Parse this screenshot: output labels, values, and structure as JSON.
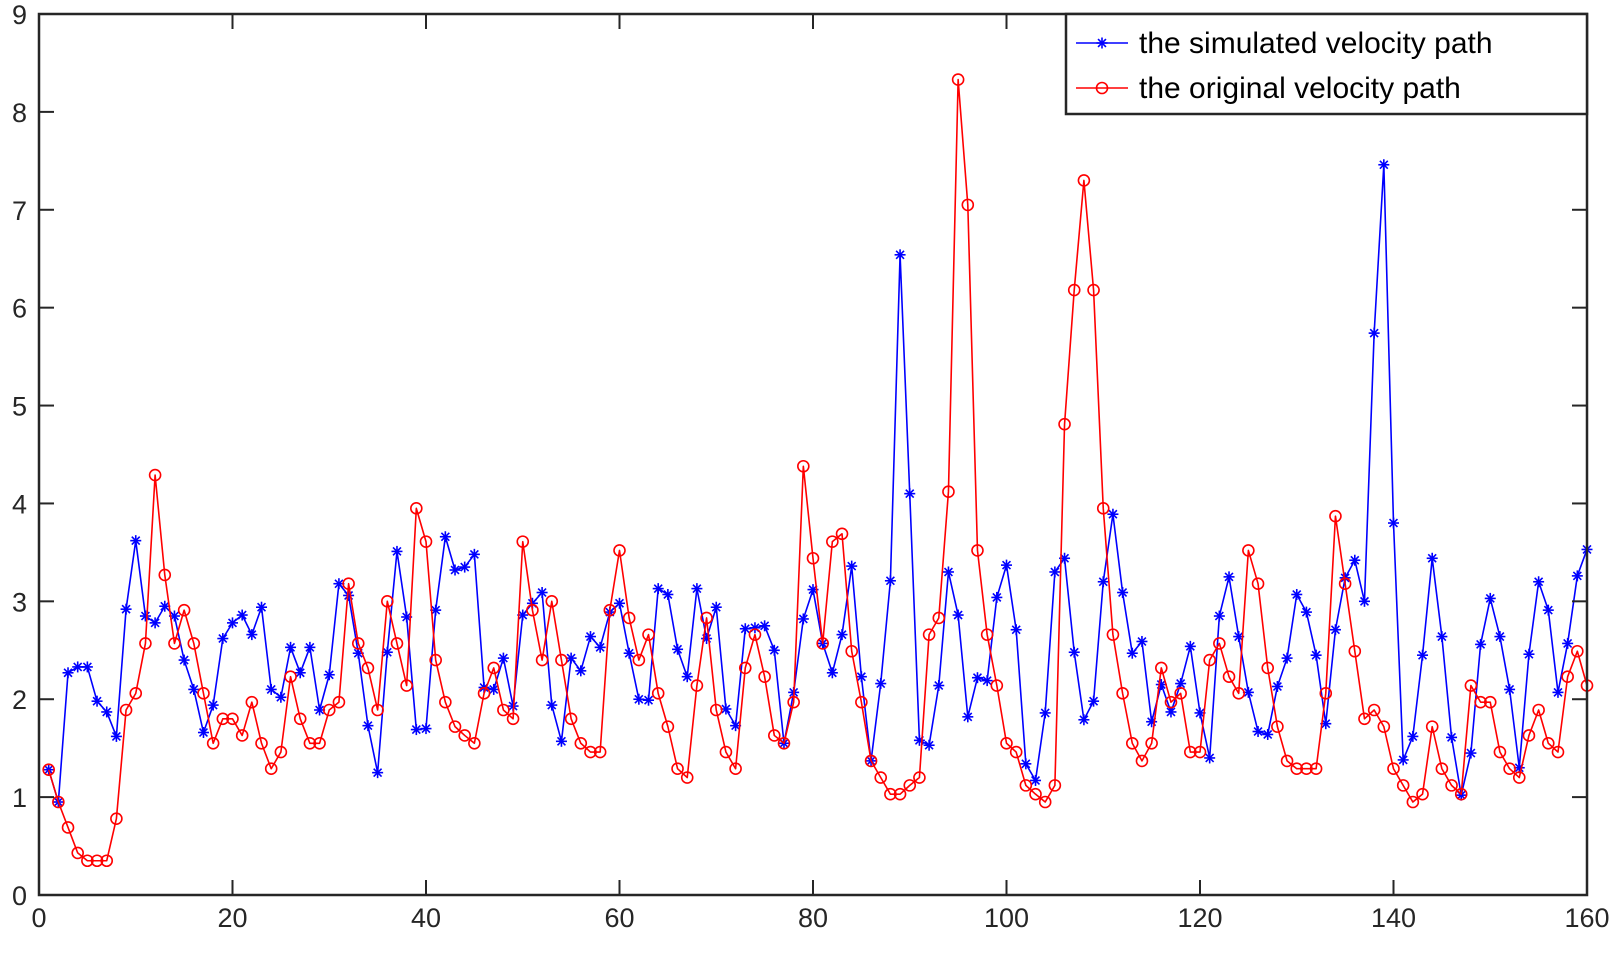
{
  "chart_data": {
    "type": "line",
    "title": "",
    "xlabel": "",
    "ylabel": "",
    "xlim": [
      0,
      160
    ],
    "ylim": [
      0,
      9
    ],
    "x_ticks": [
      0,
      20,
      40,
      60,
      80,
      100,
      120,
      140,
      160
    ],
    "y_ticks": [
      0,
      1,
      2,
      3,
      4,
      5,
      6,
      7,
      8,
      9
    ],
    "grid": false,
    "legend": {
      "placement": "top-right"
    },
    "series": [
      {
        "name": "the simulated velocity path",
        "color": "#0000ff",
        "marker": "asterisk",
        "x": [
          1,
          2,
          3,
          4,
          5,
          6,
          7,
          8,
          9,
          10,
          11,
          12,
          13,
          14,
          15,
          16,
          17,
          18,
          19,
          20,
          21,
          22,
          23,
          24,
          25,
          26,
          27,
          28,
          29,
          30,
          31,
          32,
          33,
          34,
          35,
          36,
          37,
          38,
          39,
          40,
          41,
          42,
          43,
          44,
          45,
          46,
          47,
          48,
          49,
          50,
          51,
          52,
          53,
          54,
          55,
          56,
          57,
          58,
          59,
          60,
          61,
          62,
          63,
          64,
          65,
          66,
          67,
          68,
          69,
          70,
          71,
          72,
          73,
          74,
          75,
          76,
          77,
          78,
          79,
          80,
          81,
          82,
          83,
          84,
          85,
          86,
          87,
          88,
          89,
          90,
          91,
          92,
          93,
          94,
          95,
          96,
          97,
          98,
          99,
          100,
          101,
          102,
          103,
          104,
          105,
          106,
          107,
          108,
          109,
          110,
          111,
          112,
          113,
          114,
          115,
          116,
          117,
          118,
          119,
          120,
          121,
          122,
          123,
          124,
          125,
          126,
          127,
          128,
          129,
          130,
          131,
          132,
          133,
          134,
          135,
          136,
          137,
          138,
          139,
          140,
          141,
          142,
          143,
          144,
          145,
          146,
          147,
          148,
          149,
          150,
          151,
          152,
          153,
          154,
          155,
          156,
          157,
          158,
          159,
          160
        ],
        "y": [
          1.28,
          0.95,
          2.27,
          2.33,
          2.33,
          1.98,
          1.87,
          1.62,
          2.92,
          3.62,
          2.85,
          2.78,
          2.95,
          2.85,
          2.4,
          2.1,
          1.66,
          1.94,
          2.62,
          2.78,
          2.86,
          2.66,
          2.94,
          2.1,
          2.02,
          2.53,
          2.27,
          2.53,
          1.89,
          2.25,
          3.18,
          3.06,
          2.47,
          1.73,
          1.25,
          2.48,
          3.51,
          2.84,
          1.69,
          1.7,
          2.91,
          3.66,
          3.32,
          3.35,
          3.48,
          2.12,
          2.1,
          2.42,
          1.93,
          2.86,
          2.98,
          3.09,
          1.94,
          1.57,
          2.42,
          2.29,
          2.64,
          2.53,
          2.89,
          2.98,
          2.47,
          2.0,
          1.99,
          3.13,
          3.07,
          2.51,
          2.23,
          3.13,
          2.62,
          2.94,
          1.9,
          1.73,
          2.72,
          2.73,
          2.75,
          2.5,
          1.55,
          2.07,
          2.82,
          3.12,
          2.57,
          2.27,
          2.66,
          3.36,
          2.23,
          1.37,
          2.16,
          3.21,
          6.54,
          4.1,
          1.58,
          1.53,
          2.14,
          3.3,
          2.86,
          1.82,
          2.22,
          2.19,
          3.04,
          3.37,
          2.71,
          1.34,
          1.17,
          1.86,
          3.3,
          3.44,
          2.48,
          1.79,
          1.98,
          3.2,
          3.89,
          3.09,
          2.47,
          2.59,
          1.77,
          2.15,
          1.87,
          2.16,
          2.54,
          1.86,
          1.4,
          2.85,
          3.25,
          2.64,
          2.07,
          1.67,
          1.64,
          2.13,
          2.42,
          3.07,
          2.89,
          2.45,
          1.75,
          2.71,
          3.24,
          3.42,
          3.0,
          5.74,
          7.46,
          3.8,
          1.38,
          1.62,
          2.45,
          3.44,
          2.64,
          1.61,
          1.02,
          1.45,
          2.56,
          3.03,
          2.64,
          2.1,
          1.3,
          2.46,
          3.2,
          2.91,
          2.07,
          2.57,
          3.26,
          3.53
        ]
      },
      {
        "name": "the original velocity path",
        "color": "#ff0000",
        "marker": "circle",
        "x": [
          1,
          2,
          3,
          4,
          5,
          6,
          7,
          8,
          9,
          10,
          11,
          12,
          13,
          14,
          15,
          16,
          17,
          18,
          19,
          20,
          21,
          22,
          23,
          24,
          25,
          26,
          27,
          28,
          29,
          30,
          31,
          32,
          33,
          34,
          35,
          36,
          37,
          38,
          39,
          40,
          41,
          42,
          43,
          44,
          45,
          46,
          47,
          48,
          49,
          50,
          51,
          52,
          53,
          54,
          55,
          56,
          57,
          58,
          59,
          60,
          61,
          62,
          63,
          64,
          65,
          66,
          67,
          68,
          69,
          70,
          71,
          72,
          73,
          74,
          75,
          76,
          77,
          78,
          79,
          80,
          81,
          82,
          83,
          84,
          85,
          86,
          87,
          88,
          89,
          90,
          91,
          92,
          93,
          94,
          95,
          96,
          97,
          98,
          99,
          100,
          101,
          102,
          103,
          104,
          105,
          106,
          107,
          108,
          109,
          110,
          111,
          112,
          113,
          114,
          115,
          116,
          117,
          118,
          119,
          120,
          121,
          122,
          123,
          124,
          125,
          126,
          127,
          128,
          129,
          130,
          131,
          132,
          133,
          134,
          135,
          136,
          137,
          138,
          139,
          140,
          141,
          142,
          143,
          144,
          145,
          146,
          147,
          148,
          149,
          150,
          151,
          152,
          153,
          154,
          155,
          156,
          157,
          158,
          159,
          160
        ],
        "y": [
          1.28,
          0.95,
          0.69,
          0.43,
          0.35,
          0.35,
          0.35,
          0.78,
          1.89,
          2.06,
          2.57,
          4.29,
          3.27,
          2.57,
          2.91,
          2.57,
          2.06,
          1.55,
          1.8,
          1.8,
          1.63,
          1.97,
          1.55,
          1.29,
          1.46,
          2.23,
          1.8,
          1.55,
          1.55,
          1.89,
          1.97,
          3.18,
          2.57,
          2.32,
          1.89,
          3.0,
          2.57,
          2.14,
          3.95,
          3.61,
          2.4,
          1.97,
          1.72,
          1.63,
          1.55,
          2.06,
          2.32,
          1.89,
          1.8,
          3.61,
          2.91,
          2.4,
          3.0,
          2.4,
          1.8,
          1.55,
          1.46,
          1.46,
          2.91,
          3.52,
          2.83,
          2.4,
          2.66,
          2.06,
          1.72,
          1.29,
          1.2,
          2.14,
          2.83,
          1.89,
          1.46,
          1.29,
          2.32,
          2.66,
          2.23,
          1.63,
          1.55,
          1.97,
          4.38,
          3.44,
          2.57,
          3.61,
          3.69,
          2.49,
          1.97,
          1.37,
          1.2,
          1.03,
          1.03,
          1.12,
          1.2,
          2.66,
          2.83,
          4.12,
          8.33,
          7.05,
          3.52,
          2.66,
          2.14,
          1.55,
          1.46,
          1.12,
          1.03,
          0.95,
          1.12,
          4.81,
          6.18,
          7.3,
          6.18,
          3.95,
          2.66,
          2.06,
          1.55,
          1.37,
          1.55,
          2.32,
          1.97,
          2.06,
          1.46,
          1.46,
          2.4,
          2.57,
          2.23,
          2.06,
          3.52,
          3.18,
          2.32,
          1.72,
          1.37,
          1.29,
          1.29,
          1.29,
          2.06,
          3.87,
          3.18,
          2.49,
          1.8,
          1.89,
          1.72,
          1.29,
          1.12,
          0.95,
          1.03,
          1.72,
          1.29,
          1.12,
          1.03,
          2.14,
          1.97,
          1.97,
          1.46,
          1.29,
          1.2,
          1.63,
          1.89,
          1.55,
          1.46,
          2.23,
          2.49,
          2.14
        ]
      }
    ]
  }
}
